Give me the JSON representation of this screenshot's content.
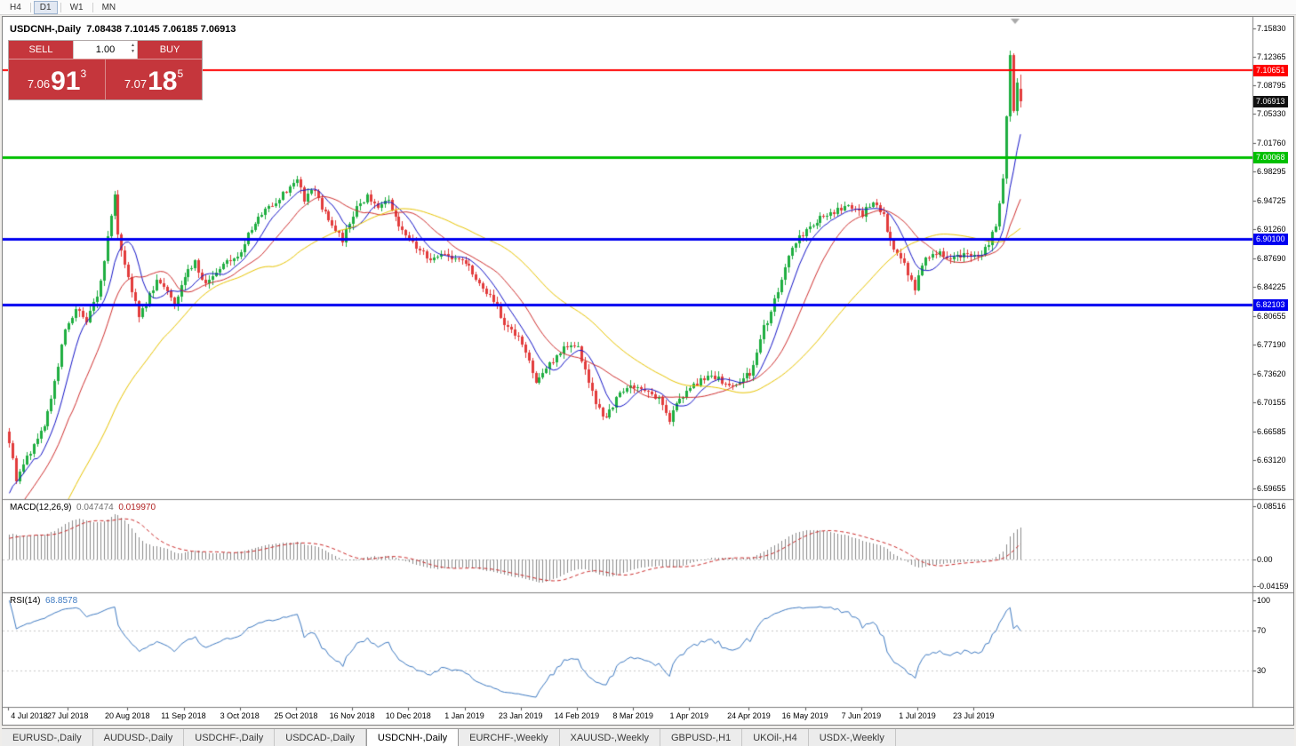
{
  "topbar": {
    "timeframes": [
      "H4",
      "D1",
      "W1",
      "MN"
    ],
    "active": "D1"
  },
  "header": {
    "symbol_title": "USDCNH-,Daily",
    "ohlc_text": "7.08438 7.10145 7.06185 7.06913"
  },
  "trade_panel": {
    "sell_label": "SELL",
    "buy_label": "BUY",
    "volume": "1.00",
    "sell_price": {
      "prefix": "7.06",
      "big": "91",
      "sup": "3"
    },
    "buy_price": {
      "prefix": "7.07",
      "big": "18",
      "sup": "5"
    },
    "panel_color": "#c5363c"
  },
  "macd_panel": {
    "label": "MACD(12,26,9)",
    "value_main": "0.047474",
    "value_signal": "0.019970",
    "axis_labels": [
      "0.08516",
      "0.00",
      "-0.04159"
    ]
  },
  "rsi_panel": {
    "label": "RSI(14)",
    "value": "68.8578",
    "axis_labels": [
      "100",
      "70",
      "30"
    ]
  },
  "tabs": {
    "active_index": 4,
    "items": [
      "EURUSD-,Daily",
      "AUDUSD-,Daily",
      "USDCHF-,Daily",
      "USDCAD-,Daily",
      "USDCNH-,Daily",
      "EURCHF-,Weekly",
      "XAUUSD-,Weekly",
      "GBPUSD-,H1",
      "UKOil-,H4",
      "USDX-,Weekly"
    ]
  },
  "chart_data": {
    "type": "candlestick",
    "symbol": "USDCNH-",
    "timeframe": "Daily",
    "title": "USDCNH-,Daily",
    "last_candle_ohlc": {
      "open": 7.08438,
      "high": 7.10145,
      "low": 7.06185,
      "close": 7.06913
    },
    "y_range": [
      6.583,
      7.172
    ],
    "price_axis_ticks": [
      "7.15830",
      "7.12365",
      "7.08795",
      "7.05330",
      "7.01760",
      "6.98295",
      "6.94725",
      "6.91260",
      "6.87690",
      "6.84225",
      "6.80655",
      "6.77190",
      "6.73620",
      "6.70155",
      "6.66585",
      "6.63120",
      "6.59655"
    ],
    "levels": [
      {
        "price": 7.10651,
        "label": "7.10651",
        "color": "#ff0000",
        "thickness": 2
      },
      {
        "price": 7.00068,
        "label": "7.00068",
        "color": "#00c000",
        "thickness": 3
      },
      {
        "price": 6.901,
        "label": "6.90100",
        "color": "#0000f0",
        "thickness": 3
      },
      {
        "price": 6.82103,
        "label": "6.82103",
        "color": "#0000f0",
        "thickness": 3
      }
    ],
    "current_price": {
      "value": 7.06913,
      "label": "7.06913",
      "box_color": "#111111"
    },
    "candle_count": 289,
    "candle_colors": {
      "up": "#1fae41",
      "down": "#e23b3b"
    },
    "price_keyframes": [
      [
        0,
        6.655
      ],
      [
        2,
        6.603
      ],
      [
        4,
        6.627
      ],
      [
        7,
        6.648
      ],
      [
        10,
        6.672
      ],
      [
        13,
        6.725
      ],
      [
        16,
        6.79
      ],
      [
        19,
        6.815
      ],
      [
        22,
        6.8
      ],
      [
        25,
        6.832
      ],
      [
        27,
        6.872
      ],
      [
        29,
        6.932
      ],
      [
        30,
        6.952
      ],
      [
        31,
        6.905
      ],
      [
        33,
        6.872
      ],
      [
        35,
        6.838
      ],
      [
        37,
        6.808
      ],
      [
        39,
        6.822
      ],
      [
        42,
        6.852
      ],
      [
        45,
        6.84
      ],
      [
        47,
        6.822
      ],
      [
        50,
        6.858
      ],
      [
        53,
        6.872
      ],
      [
        56,
        6.843
      ],
      [
        59,
        6.862
      ],
      [
        62,
        6.872
      ],
      [
        65,
        6.878
      ],
      [
        68,
        6.905
      ],
      [
        71,
        6.927
      ],
      [
        74,
        6.94
      ],
      [
        77,
        6.952
      ],
      [
        80,
        6.962
      ],
      [
        82,
        6.973
      ],
      [
        84,
        6.95
      ],
      [
        86,
        6.963
      ],
      [
        89,
        6.94
      ],
      [
        92,
        6.918
      ],
      [
        95,
        6.898
      ],
      [
        97,
        6.92
      ],
      [
        99,
        6.94
      ],
      [
        102,
        6.952
      ],
      [
        105,
        6.938
      ],
      [
        108,
        6.946
      ],
      [
        111,
        6.92
      ],
      [
        114,
        6.9
      ],
      [
        117,
        6.886
      ],
      [
        120,
        6.876
      ],
      [
        123,
        6.884
      ],
      [
        126,
        6.878
      ],
      [
        129,
        6.874
      ],
      [
        132,
        6.86
      ],
      [
        135,
        6.842
      ],
      [
        138,
        6.826
      ],
      [
        141,
        6.792
      ],
      [
        144,
        6.786
      ],
      [
        147,
        6.76
      ],
      [
        150,
        6.728
      ],
      [
        153,
        6.742
      ],
      [
        156,
        6.758
      ],
      [
        159,
        6.772
      ],
      [
        162,
        6.768
      ],
      [
        164,
        6.742
      ],
      [
        167,
        6.7
      ],
      [
        170,
        6.68
      ],
      [
        173,
        6.706
      ],
      [
        176,
        6.718
      ],
      [
        179,
        6.722
      ],
      [
        182,
        6.714
      ],
      [
        185,
        6.704
      ],
      [
        188,
        6.68
      ],
      [
        191,
        6.706
      ],
      [
        194,
        6.718
      ],
      [
        197,
        6.728
      ],
      [
        200,
        6.734
      ],
      [
        203,
        6.728
      ],
      [
        206,
        6.72
      ],
      [
        209,
        6.73
      ],
      [
        211,
        6.736
      ],
      [
        213,
        6.758
      ],
      [
        215,
        6.792
      ],
      [
        217,
        6.812
      ],
      [
        219,
        6.838
      ],
      [
        221,
        6.868
      ],
      [
        223,
        6.892
      ],
      [
        225,
        6.902
      ],
      [
        227,
        6.91
      ],
      [
        230,
        6.924
      ],
      [
        233,
        6.932
      ],
      [
        236,
        6.936
      ],
      [
        239,
        6.944
      ],
      [
        241,
        6.934
      ],
      [
        243,
        6.93
      ],
      [
        245,
        6.944
      ],
      [
        247,
        6.94
      ],
      [
        249,
        6.928
      ],
      [
        251,
        6.896
      ],
      [
        253,
        6.88
      ],
      [
        255,
        6.868
      ],
      [
        257,
        6.848
      ],
      [
        258,
        6.838
      ],
      [
        260,
        6.872
      ],
      [
        262,
        6.88
      ],
      [
        264,
        6.884
      ],
      [
        267,
        6.878
      ],
      [
        270,
        6.88
      ],
      [
        273,
        6.884
      ],
      [
        276,
        6.88
      ],
      [
        279,
        6.892
      ],
      [
        281,
        6.92
      ],
      [
        282,
        6.945
      ],
      [
        283,
        6.972
      ],
      [
        284,
        7.052
      ],
      [
        285,
        7.128
      ],
      [
        286,
        7.058
      ],
      [
        287,
        7.094
      ],
      [
        288,
        7.069
      ]
    ],
    "x_axis_dates": [
      {
        "index": 0,
        "label": "4 Jul 2018"
      },
      {
        "index": 17,
        "label": "27 Jul 2018"
      },
      {
        "index": 34,
        "label": "20 Aug 2018"
      },
      {
        "index": 50,
        "label": "11 Sep 2018"
      },
      {
        "index": 66,
        "label": "3 Oct 2018"
      },
      {
        "index": 82,
        "label": "25 Oct 2018"
      },
      {
        "index": 98,
        "label": "16 Nov 2018"
      },
      {
        "index": 114,
        "label": "10 Dec 2018"
      },
      {
        "index": 130,
        "label": "1 Jan 2019"
      },
      {
        "index": 146,
        "label": "23 Jan 2019"
      },
      {
        "index": 162,
        "label": "14 Feb 2019"
      },
      {
        "index": 178,
        "label": "8 Mar 2019"
      },
      {
        "index": 194,
        "label": "1 Apr 2019"
      },
      {
        "index": 211,
        "label": "24 Apr 2019"
      },
      {
        "index": 227,
        "label": "16 May 2019"
      },
      {
        "index": 243,
        "label": "7 Jun 2019"
      },
      {
        "index": 259,
        "label": "1 Jul 2019"
      },
      {
        "index": 275,
        "label": "23 Jul 2019"
      }
    ],
    "moving_averages": [
      {
        "period": 8,
        "color": "#1414c8"
      },
      {
        "period": 18,
        "color": "#d03030"
      },
      {
        "period": 45,
        "color": "#e8c400"
      }
    ],
    "macd": {
      "fast": 12,
      "slow": 26,
      "signal_period": 9,
      "y_range": [
        -0.052,
        0.0945
      ],
      "histogram_color": "#8c8c8c",
      "signal_color": "#cc2929",
      "last_values": [
        0.047474,
        0.01997
      ]
    },
    "rsi": {
      "period": 14,
      "levels": [
        70,
        30
      ],
      "y_range": [
        -6.3,
        107.1
      ],
      "line_color": "#3e7ac2",
      "last_value": 68.8578
    }
  }
}
